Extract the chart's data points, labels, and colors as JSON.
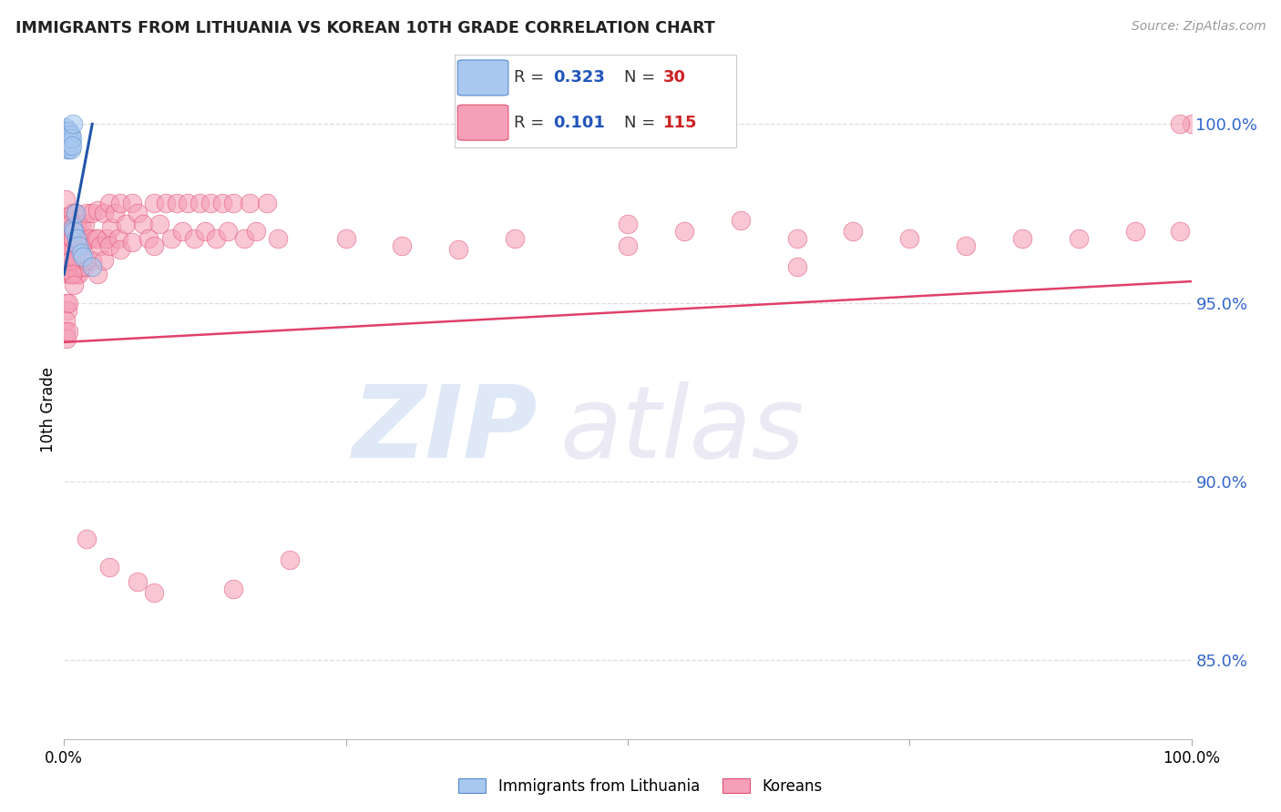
{
  "title": "IMMIGRANTS FROM LITHUANIA VS KOREAN 10TH GRADE CORRELATION CHART",
  "source": "Source: ZipAtlas.com",
  "ylabel": "10th Grade",
  "watermark_zip": "ZIP",
  "watermark_atlas": "atlas",
  "xmin": 0.0,
  "xmax": 1.0,
  "ymin": 0.828,
  "ymax": 1.012,
  "yticks": [
    0.85,
    0.9,
    0.95,
    1.0
  ],
  "ytick_labels": [
    "85.0%",
    "90.0%",
    "95.0%",
    "100.0%"
  ],
  "xticks": [
    0.0,
    0.25,
    0.5,
    0.75,
    1.0
  ],
  "xtick_labels": [
    "0.0%",
    "",
    "",
    "",
    "100.0%"
  ],
  "blue_color": "#a8c8f0",
  "pink_color": "#f5a0b8",
  "blue_edge_color": "#5588cc",
  "pink_edge_color": "#e05070",
  "blue_line_color": "#2255aa",
  "pink_line_color": "#e0406a",
  "legend_blue_R": "0.323",
  "legend_blue_N": "30",
  "legend_pink_R": "0.101",
  "legend_pink_N": "115",
  "legend_R_color": "#2255bb",
  "legend_N_color": "#cc2222",
  "blue_scatter_x": [
    0.001,
    0.001,
    0.002,
    0.002,
    0.002,
    0.003,
    0.003,
    0.003,
    0.003,
    0.003,
    0.004,
    0.004,
    0.004,
    0.005,
    0.005,
    0.005,
    0.006,
    0.006,
    0.006,
    0.007,
    0.007,
    0.008,
    0.008,
    0.009,
    0.01,
    0.011,
    0.013,
    0.015,
    0.017,
    0.025
  ],
  "blue_scatter_y": [
    0.999,
    0.997,
    0.998,
    0.996,
    0.994,
    0.998,
    0.997,
    0.996,
    0.995,
    0.993,
    0.997,
    0.995,
    0.993,
    0.998,
    0.996,
    0.994,
    0.997,
    0.995,
    0.993,
    0.996,
    0.994,
    1.0,
    0.971,
    0.97,
    0.975,
    0.968,
    0.966,
    0.964,
    0.963,
    0.96
  ],
  "pink_scatter_x": [
    0.001,
    0.001,
    0.002,
    0.002,
    0.002,
    0.003,
    0.003,
    0.004,
    0.004,
    0.005,
    0.005,
    0.005,
    0.006,
    0.006,
    0.007,
    0.007,
    0.008,
    0.008,
    0.008,
    0.009,
    0.01,
    0.01,
    0.011,
    0.011,
    0.012,
    0.012,
    0.013,
    0.013,
    0.015,
    0.015,
    0.016,
    0.018,
    0.018,
    0.02,
    0.02,
    0.022,
    0.025,
    0.025,
    0.028,
    0.03,
    0.03,
    0.03,
    0.032,
    0.035,
    0.035,
    0.038,
    0.04,
    0.04,
    0.042,
    0.045,
    0.048,
    0.05,
    0.05,
    0.055,
    0.06,
    0.06,
    0.065,
    0.07,
    0.075,
    0.08,
    0.08,
    0.085,
    0.09,
    0.095,
    0.1,
    0.105,
    0.11,
    0.115,
    0.12,
    0.125,
    0.13,
    0.135,
    0.14,
    0.145,
    0.15,
    0.16,
    0.165,
    0.17,
    0.18,
    0.19,
    0.02,
    0.04,
    0.065,
    0.08,
    0.15,
    0.2,
    0.25,
    0.3,
    0.35,
    0.4,
    0.5,
    0.5,
    0.55,
    0.6,
    0.65,
    0.65,
    0.7,
    0.75,
    0.8,
    0.85,
    0.9,
    0.95,
    0.99,
    1.0,
    0.99,
    0.002,
    0.003,
    0.001,
    0.001,
    0.002,
    0.004,
    0.004,
    0.006,
    0.007,
    0.009
  ],
  "pink_scatter_y": [
    0.979,
    0.972,
    0.974,
    0.968,
    0.96,
    0.973,
    0.964,
    0.97,
    0.958,
    0.972,
    0.966,
    0.958,
    0.97,
    0.96,
    0.968,
    0.958,
    0.975,
    0.968,
    0.958,
    0.965,
    0.975,
    0.962,
    0.97,
    0.958,
    0.972,
    0.962,
    0.968,
    0.958,
    0.972,
    0.96,
    0.966,
    0.972,
    0.96,
    0.975,
    0.962,
    0.968,
    0.975,
    0.962,
    0.968,
    0.976,
    0.968,
    0.958,
    0.966,
    0.975,
    0.962,
    0.968,
    0.978,
    0.966,
    0.971,
    0.975,
    0.968,
    0.978,
    0.965,
    0.972,
    0.978,
    0.967,
    0.975,
    0.972,
    0.968,
    0.978,
    0.966,
    0.972,
    0.978,
    0.968,
    0.978,
    0.97,
    0.978,
    0.968,
    0.978,
    0.97,
    0.978,
    0.968,
    0.978,
    0.97,
    0.978,
    0.968,
    0.978,
    0.97,
    0.978,
    0.968,
    0.884,
    0.876,
    0.872,
    0.869,
    0.87,
    0.878,
    0.968,
    0.966,
    0.965,
    0.968,
    0.972,
    0.966,
    0.97,
    0.973,
    0.968,
    0.96,
    0.97,
    0.968,
    0.966,
    0.968,
    0.968,
    0.97,
    0.97,
    1.0,
    1.0,
    0.95,
    0.948,
    0.945,
    0.942,
    0.94,
    0.95,
    0.942,
    0.962,
    0.958,
    0.955
  ],
  "blue_trendline_x": [
    0.0,
    0.025
  ],
  "blue_trendline_y": [
    0.958,
    1.0
  ],
  "pink_trendline_x": [
    0.0,
    1.0
  ],
  "pink_trendline_y": [
    0.939,
    0.956
  ],
  "figsize": [
    14.06,
    8.92
  ],
  "dpi": 100
}
